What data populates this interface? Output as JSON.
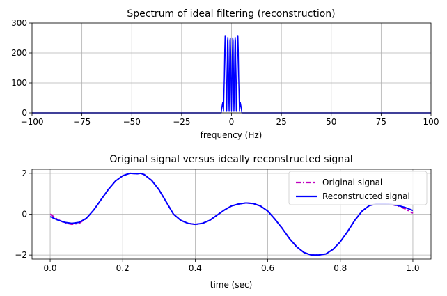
{
  "chart_data": [
    {
      "type": "line",
      "title": "Spectrum of ideal filtering (reconstruction)",
      "xlabel": "frequency (Hz)",
      "ylabel": "",
      "xlim": [
        -100,
        100
      ],
      "ylim": [
        0,
        300
      ],
      "xticks": [
        -100,
        -75,
        -50,
        -25,
        0,
        25,
        50,
        75,
        100
      ],
      "xtick_labels": [
        "−100",
        "−75",
        "−50",
        "−25",
        "0",
        "25",
        "50",
        "75",
        "100"
      ],
      "yticks": [
        0,
        100,
        200,
        300
      ],
      "ytick_labels": [
        "0",
        "100",
        "200",
        "300"
      ],
      "grid": true,
      "series": [
        {
          "color": "#0000ff",
          "x": [
            -100,
            -5.2,
            -4.8,
            -4.4,
            -4.0,
            -3.6,
            -3.4,
            -3.2,
            -3.0,
            -2.8,
            -2.6,
            -2.4,
            -2.2,
            -2.0,
            -1.8,
            -1.6,
            -1.4,
            -1.2,
            -1.0,
            -0.8,
            -0.6,
            -0.4,
            -0.2,
            0.0,
            0.2,
            0.4,
            0.6,
            0.8,
            1.0,
            1.2,
            1.4,
            1.6,
            1.8,
            2.0,
            2.2,
            2.4,
            2.6,
            2.8,
            3.0,
            3.2,
            3.4,
            3.6,
            4.0,
            4.4,
            4.8,
            5.2,
            100
          ],
          "y": [
            0,
            0,
            20,
            35,
            5,
            120,
            210,
            258,
            230,
            140,
            40,
            5,
            110,
            240,
            252,
            180,
            60,
            5,
            120,
            240,
            250,
            190,
            80,
            5,
            80,
            190,
            250,
            240,
            120,
            5,
            60,
            180,
            252,
            240,
            110,
            5,
            40,
            140,
            230,
            258,
            210,
            120,
            5,
            35,
            20,
            0,
            0
          ]
        }
      ]
    },
    {
      "type": "line",
      "title": "Original signal versus ideally reconstructed signal",
      "xlabel": "time (sec)",
      "ylabel": "",
      "xlim": [
        -0.05,
        1.05
      ],
      "ylim": [
        -2.2,
        2.2
      ],
      "xticks": [
        0.0,
        0.2,
        0.4,
        0.6,
        0.8,
        1.0
      ],
      "xtick_labels": [
        "0.0",
        "0.2",
        "0.4",
        "0.6",
        "0.8",
        "1.0"
      ],
      "yticks": [
        -2,
        0,
        2
      ],
      "ytick_labels": [
        "−2",
        "0",
        "2"
      ],
      "grid": true,
      "legend": "top-right",
      "series": [
        {
          "name": "Original signal",
          "color": "#bf00bf",
          "style": "dashdot",
          "x": [
            0.0,
            0.02,
            0.04,
            0.06,
            0.08,
            0.1,
            0.12,
            0.14,
            0.16,
            0.18,
            0.2,
            0.22,
            0.24,
            0.25,
            0.26,
            0.28,
            0.3,
            0.32,
            0.34,
            0.36,
            0.38,
            0.4,
            0.42,
            0.44,
            0.46,
            0.48,
            0.5,
            0.52,
            0.54,
            0.56,
            0.58,
            0.6,
            0.62,
            0.64,
            0.66,
            0.68,
            0.7,
            0.72,
            0.74,
            0.76,
            0.78,
            0.8,
            0.82,
            0.84,
            0.86,
            0.88,
            0.9,
            0.92,
            0.94,
            0.96,
            0.98,
            1.0
          ],
          "y": [
            0.0,
            -0.25,
            -0.43,
            -0.5,
            -0.45,
            -0.2,
            0.2,
            0.7,
            1.2,
            1.62,
            1.88,
            2.0,
            1.98,
            2.0,
            1.93,
            1.65,
            1.2,
            0.6,
            0.0,
            -0.3,
            -0.45,
            -0.5,
            -0.45,
            -0.3,
            -0.05,
            0.2,
            0.4,
            0.5,
            0.55,
            0.52,
            0.4,
            0.15,
            -0.25,
            -0.7,
            -1.2,
            -1.6,
            -1.88,
            -2.0,
            -2.0,
            -1.95,
            -1.72,
            -1.35,
            -0.85,
            -0.3,
            0.15,
            0.42,
            0.5,
            0.5,
            0.48,
            0.4,
            0.25,
            0.05
          ]
        },
        {
          "name": "Reconstructed signal",
          "color": "#0000ff",
          "style": "solid",
          "x": [
            0.0,
            0.02,
            0.04,
            0.06,
            0.08,
            0.1,
            0.12,
            0.14,
            0.16,
            0.18,
            0.2,
            0.22,
            0.24,
            0.25,
            0.26,
            0.28,
            0.3,
            0.32,
            0.34,
            0.36,
            0.38,
            0.4,
            0.42,
            0.44,
            0.46,
            0.48,
            0.5,
            0.52,
            0.54,
            0.56,
            0.58,
            0.6,
            0.62,
            0.64,
            0.66,
            0.68,
            0.7,
            0.72,
            0.74,
            0.76,
            0.78,
            0.8,
            0.82,
            0.84,
            0.86,
            0.88,
            0.9,
            0.92,
            0.94,
            0.96,
            0.98,
            1.0
          ],
          "y": [
            -0.12,
            -0.28,
            -0.4,
            -0.45,
            -0.4,
            -0.2,
            0.2,
            0.7,
            1.2,
            1.62,
            1.88,
            2.0,
            1.98,
            2.0,
            1.93,
            1.65,
            1.2,
            0.6,
            0.0,
            -0.3,
            -0.45,
            -0.5,
            -0.45,
            -0.3,
            -0.05,
            0.2,
            0.4,
            0.5,
            0.55,
            0.52,
            0.4,
            0.15,
            -0.25,
            -0.7,
            -1.2,
            -1.6,
            -1.88,
            -2.0,
            -2.0,
            -1.95,
            -1.72,
            -1.35,
            -0.85,
            -0.3,
            0.15,
            0.42,
            0.5,
            0.5,
            0.48,
            0.42,
            0.32,
            0.18
          ]
        }
      ]
    }
  ]
}
